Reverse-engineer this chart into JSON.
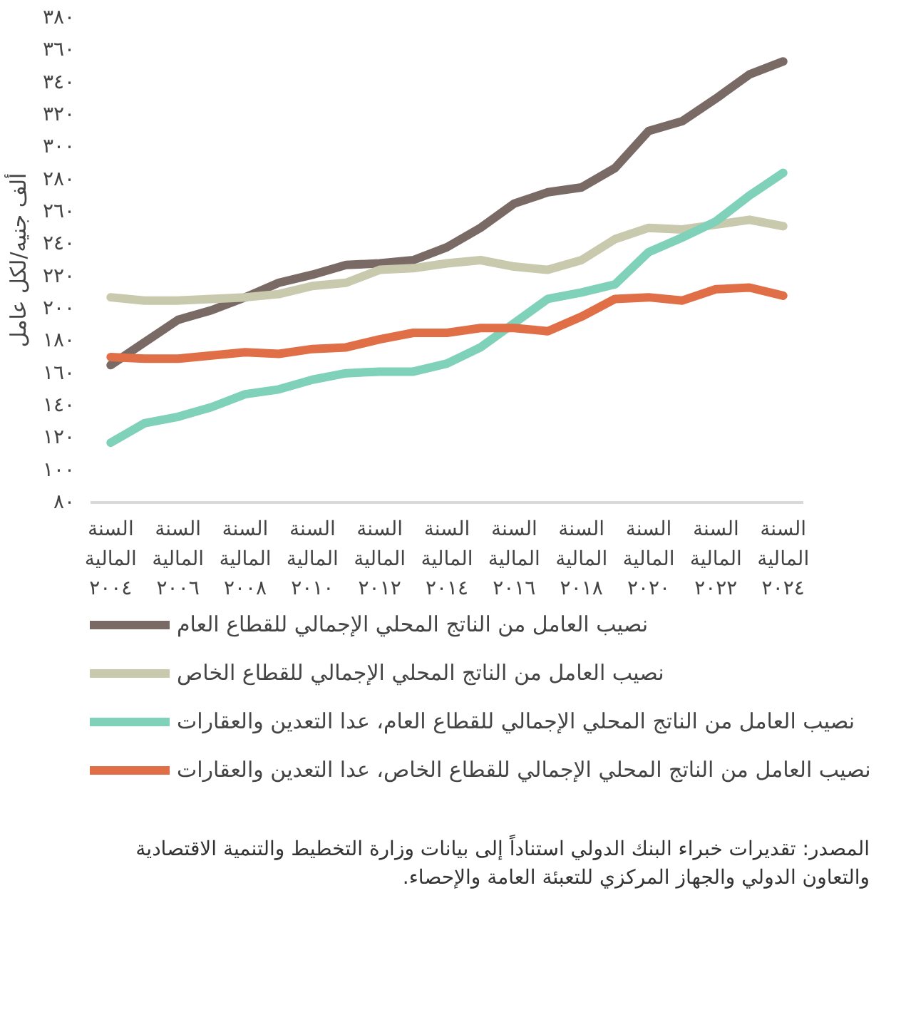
{
  "chart_data": {
    "type": "line",
    "ylabel": "ألف جنيه/لكل عامل",
    "categories": [
      "السنة المالية ٢٠٠٤",
      null,
      "السنة المالية ٢٠٠٦",
      null,
      "السنة المالية ٢٠٠٨",
      null,
      "السنة المالية ٢٠١٠",
      null,
      "السنة المالية ٢٠١٢",
      null,
      "السنة المالية ٢٠١٤",
      null,
      "السنة المالية ٢٠١٦",
      null,
      "السنة المالية ٢٠١٨",
      null,
      "السنة المالية ٢٠٢٠",
      null,
      "السنة المالية ٢٠٢٢",
      null,
      "السنة المالية ٢٠٢٤"
    ],
    "ylim": [
      80,
      380
    ],
    "yticks": [
      {
        "value": 80,
        "label": "٨٠"
      },
      {
        "value": 100,
        "label": "١٠٠"
      },
      {
        "value": 120,
        "label": "١٢٠"
      },
      {
        "value": 140,
        "label": "١٤٠"
      },
      {
        "value": 160,
        "label": "١٦٠"
      },
      {
        "value": 180,
        "label": "١٨٠"
      },
      {
        "value": 200,
        "label": "٢٠٠"
      },
      {
        "value": 220,
        "label": "٢٢٠"
      },
      {
        "value": 240,
        "label": "٢٤٠"
      },
      {
        "value": 260,
        "label": "٢٦٠"
      },
      {
        "value": 280,
        "label": "٢٨٠"
      },
      {
        "value": 300,
        "label": "٣٠٠"
      },
      {
        "value": 320,
        "label": "٣٢٠"
      },
      {
        "value": 340,
        "label": "٣٤٠"
      },
      {
        "value": 360,
        "label": "٣٦٠"
      },
      {
        "value": 380,
        "label": "٣٨٠"
      }
    ],
    "grid": false,
    "legend": "bottom",
    "marker": "none",
    "line_style": "solid",
    "series": [
      {
        "name": "نصيب العامل من الناتج المحلي الإجمالي للقطاع العام",
        "color": "#7a6a66",
        "values": [
          165,
          179,
          193,
          199,
          207,
          216,
          221,
          227,
          228,
          230,
          238,
          250,
          265,
          272,
          275,
          287,
          310,
          316,
          330,
          345,
          353
        ]
      },
      {
        "name": "نصيب العامل من الناتج المحلي الإجمالي للقطاع الخاص",
        "color": "#c9c9ad",
        "values": [
          207,
          205,
          205,
          206,
          207,
          209,
          214,
          216,
          224,
          225,
          228,
          230,
          226,
          224,
          230,
          243,
          250,
          249,
          252,
          255,
          251
        ]
      },
      {
        "name": "نصيب العامل من الناتج المحلي الإجمالي للقطاع العام، عدا التعدين والعقارات",
        "color": "#7fd1b9",
        "values": [
          117,
          129,
          133,
          139,
          147,
          150,
          156,
          160,
          161,
          161,
          166,
          176,
          191,
          206,
          210,
          215,
          235,
          244,
          254,
          270,
          284
        ]
      },
      {
        "name": "نصيب العامل من الناتج المحلي الإجمالي للقطاع الخاص، عدا التعدين والعقارات",
        "color": "#e06f47",
        "values": [
          170,
          169,
          169,
          171,
          173,
          172,
          175,
          176,
          181,
          185,
          185,
          188,
          188,
          186,
          195,
          206,
          207,
          205,
          212,
          213,
          208
        ]
      }
    ],
    "annotations": [
      "المصدر: تقديرات خبراء البنك الدولي استناداً إلى بيانات وزارة التخطيط والتنمية الاقتصادية والتعاون الدولي والجهاز المركزي للتعبئة العامة والإحصاء."
    ]
  }
}
